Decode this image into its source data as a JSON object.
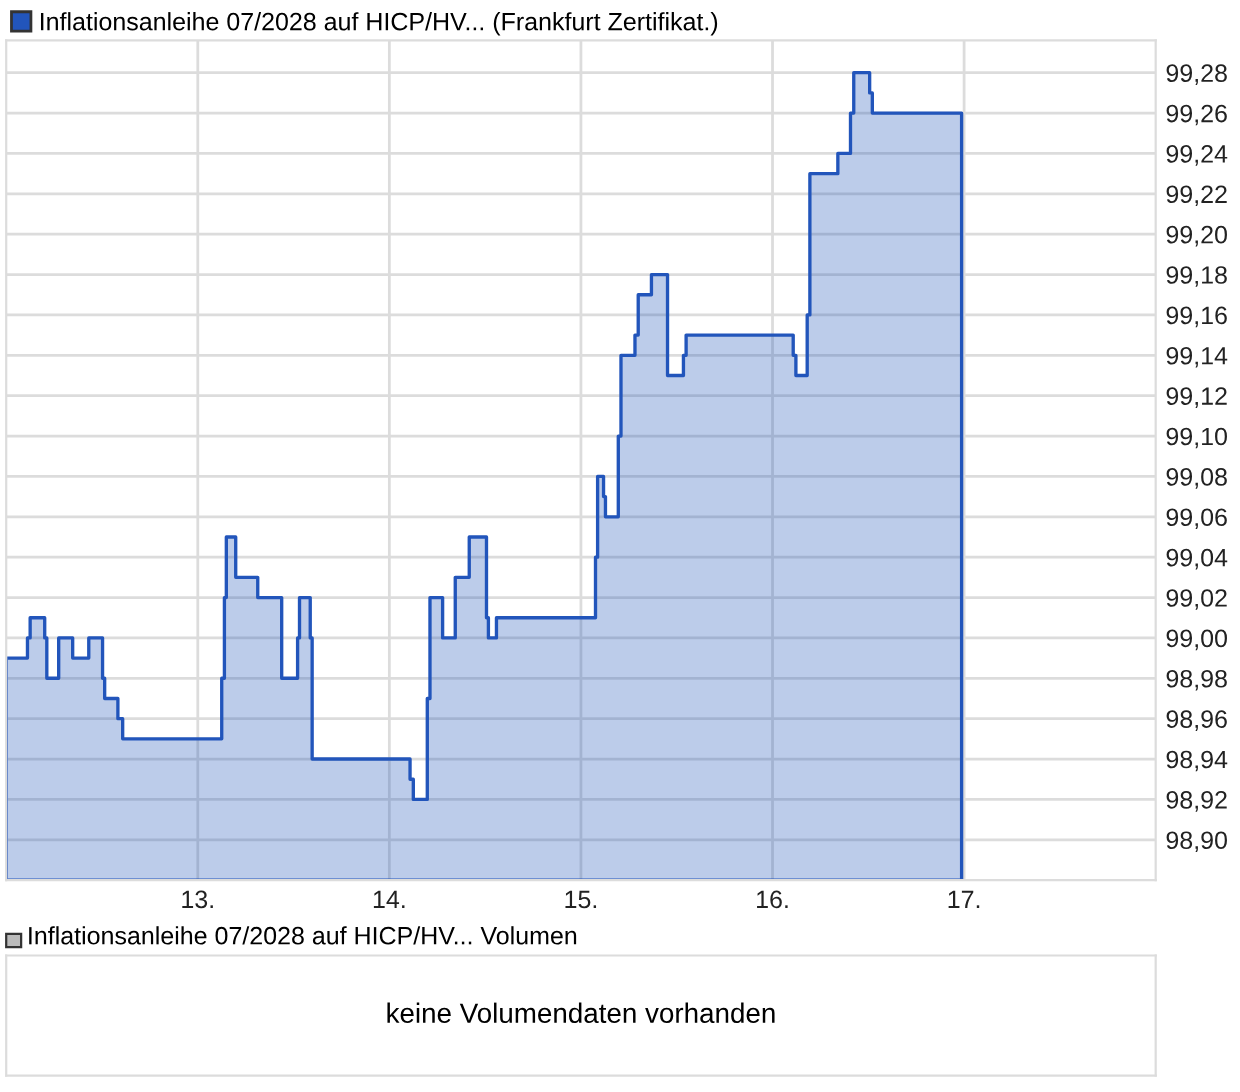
{
  "chart_data": [
    {
      "type": "area",
      "series": [
        {
          "name": "Inflationsanleihe 07/2028 auf HICP/HV... (Frankfurt Zertifikat.)",
          "color": "#2255bb",
          "x": [
            12.0,
            12.111,
            12.125,
            12.201,
            12.212,
            12.274,
            12.347,
            12.431,
            12.503,
            12.514,
            12.583,
            12.608,
            13.125,
            13.139,
            13.149,
            13.198,
            13.313,
            13.438,
            13.521,
            13.531,
            13.587,
            13.597,
            14.108,
            14.125,
            14.198,
            14.212,
            14.278,
            14.344,
            14.417,
            14.507,
            14.517,
            14.559,
            15.076,
            15.087,
            15.118,
            15.128,
            15.195,
            15.209,
            15.282,
            15.299,
            15.368,
            15.452,
            15.535,
            15.549,
            16.108,
            16.122,
            16.181,
            16.195,
            16.341,
            16.407,
            16.424,
            16.507,
            16.521,
            16.987
          ],
          "values": [
            98.99,
            99.0,
            99.01,
            99.0,
            98.98,
            99.0,
            98.99,
            99.0,
            98.98,
            98.97,
            98.96,
            98.95,
            98.98,
            99.02,
            99.05,
            99.03,
            99.02,
            98.98,
            99.0,
            99.02,
            99.0,
            98.94,
            98.93,
            98.92,
            98.97,
            99.02,
            99.0,
            99.03,
            99.05,
            99.01,
            99.0,
            99.01,
            99.04,
            99.08,
            99.07,
            99.06,
            99.1,
            99.14,
            99.15,
            99.17,
            99.18,
            99.13,
            99.14,
            99.15,
            99.14,
            99.13,
            99.16,
            99.23,
            99.24,
            99.26,
            99.28,
            99.27,
            99.26,
            99.26
          ]
        }
      ],
      "xlim": [
        12,
        18
      ],
      "xticks": [
        {
          "value": 13,
          "label": "13."
        },
        {
          "value": 14,
          "label": "14."
        },
        {
          "value": 15,
          "label": "15."
        },
        {
          "value": 16,
          "label": "16."
        },
        {
          "value": 17,
          "label": "17."
        }
      ],
      "ylim": [
        98.88,
        99.296
      ],
      "yticks": [
        {
          "value": 98.9,
          "label": "98,90"
        },
        {
          "value": 98.92,
          "label": "98,92"
        },
        {
          "value": 98.94,
          "label": "98,94"
        },
        {
          "value": 98.96,
          "label": "98,96"
        },
        {
          "value": 98.98,
          "label": "98,98"
        },
        {
          "value": 99.0,
          "label": "99,00"
        },
        {
          "value": 99.02,
          "label": "99,02"
        },
        {
          "value": 99.04,
          "label": "99,04"
        },
        {
          "value": 99.06,
          "label": "99,06"
        },
        {
          "value": 99.08,
          "label": "99,08"
        },
        {
          "value": 99.1,
          "label": "99,10"
        },
        {
          "value": 99.12,
          "label": "99,12"
        },
        {
          "value": 99.14,
          "label": "99,14"
        },
        {
          "value": 99.16,
          "label": "99,16"
        },
        {
          "value": 99.18,
          "label": "99,18"
        },
        {
          "value": 99.2,
          "label": "99,20"
        },
        {
          "value": 99.22,
          "label": "99,22"
        },
        {
          "value": 99.24,
          "label": "99,24"
        },
        {
          "value": 99.26,
          "label": "99,26"
        },
        {
          "value": 99.28,
          "label": "99,28"
        }
      ],
      "grid": true,
      "legend": "top left"
    },
    {
      "type": "other",
      "title": "Inflationsanleihe 07/2028 auf HICP/HV... Volumen",
      "annotations": [
        "keine Volumendaten vorhanden"
      ]
    }
  ]
}
